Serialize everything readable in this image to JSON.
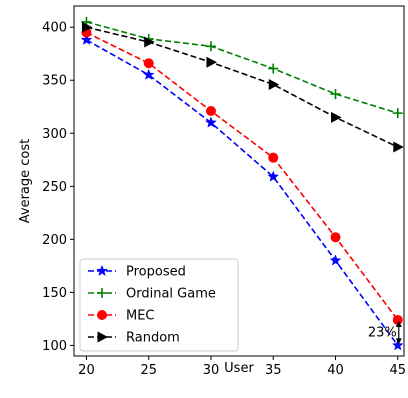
{
  "chart_data": {
    "type": "line",
    "xlabel": "User",
    "ylabel": "Average cost",
    "x": [
      20,
      25,
      30,
      35,
      40,
      45
    ],
    "xticks": [
      20,
      25,
      30,
      35,
      40,
      45
    ],
    "yticks": [
      100,
      150,
      200,
      250,
      300,
      350,
      400
    ],
    "xlim": [
      19,
      45.5
    ],
    "ylim": [
      90,
      420
    ],
    "grid": false,
    "legend_position": "lower-left",
    "series": [
      {
        "name": "Proposed",
        "color": "#0000ff",
        "marker": "star",
        "values": [
          388,
          355,
          310,
          259,
          180,
          100
        ]
      },
      {
        "name": "Ordinal Game",
        "color": "#008000",
        "marker": "plus",
        "values": [
          405,
          389,
          382,
          361,
          337,
          319
        ]
      },
      {
        "name": "MEC",
        "color": "#ff0000",
        "marker": "circle",
        "values": [
          395,
          366,
          321,
          277,
          202,
          124
        ]
      },
      {
        "name": "Random",
        "color": "#000000",
        "marker": "triangle-right",
        "values": [
          400,
          386,
          367,
          346,
          315,
          287
        ]
      }
    ],
    "annotations": [
      {
        "text": "23%",
        "x": 45,
        "y_from": 100,
        "y_to": 124
      }
    ]
  }
}
